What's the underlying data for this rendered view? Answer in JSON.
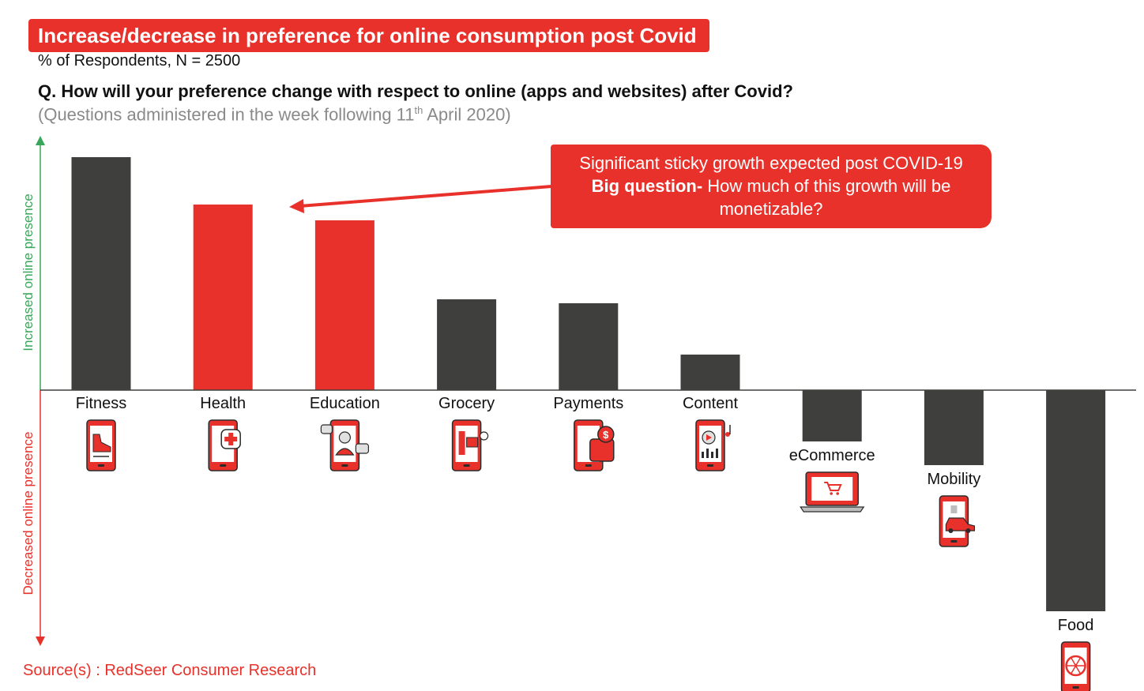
{
  "header": {
    "title": "Increase/decrease in preference for online consumption post Covid",
    "subtitle": "% of Respondents, N = 2500",
    "question": "Q. How will your preference change with respect to online (apps and websites) after Covid?",
    "note_prefix": "(Questions administered in the week following 11",
    "note_sup": "th",
    "note_suffix": " April 2020)"
  },
  "axes": {
    "up_label": "Increased online presence",
    "down_label": "Decreased online presence"
  },
  "callout": {
    "line1": "Significant sticky growth expected post COVID-19",
    "line2_bold": "Big question-",
    "line2_rest": " How much of this growth will be",
    "line3": "monetizable?"
  },
  "source": "Source(s) : RedSeer Consumer Research",
  "colors": {
    "dark": "#3f403d",
    "accent": "#e8312b",
    "up_axis": "#3aa65a",
    "down_axis": "#e8312b"
  },
  "chart_data": {
    "type": "bar",
    "categories": [
      "Fitness",
      "Health",
      "Education",
      "Grocery",
      "Payments",
      "Content",
      "eCommerce",
      "Mobility",
      "Food"
    ],
    "values": [
      59,
      47,
      43,
      23,
      22,
      9,
      -13,
      -19,
      -56
    ],
    "highlight": [
      "Health",
      "Education"
    ],
    "icons": [
      "phone-shoe-icon",
      "phone-health-icon",
      "phone-education-icon",
      "phone-grocery-icon",
      "phone-wallet-icon",
      "phone-media-icon",
      "laptop-cart-icon",
      "phone-car-icon",
      "phone-food-icon"
    ],
    "ylim": [
      -64,
      64
    ],
    "grid": false,
    "legend": "none"
  }
}
